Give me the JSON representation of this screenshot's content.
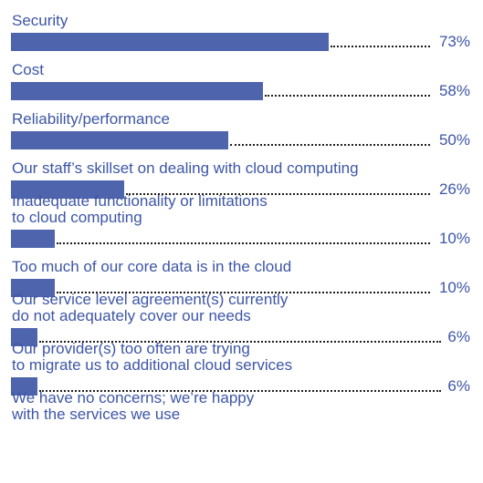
{
  "chart_data": {
    "type": "bar",
    "orientation": "horizontal",
    "categories": [
      [
        "Security"
      ],
      [
        "Cost"
      ],
      [
        "Reliability/performance"
      ],
      [
        "Our staff’s skillset on dealing with cloud computing"
      ],
      [
        "Inadequate functionality or limitations",
        "to cloud computing"
      ],
      [
        "Too much of our core data is in the cloud"
      ],
      [
        "Our service level agreement(s) currently",
        "do not adequately cover our needs"
      ],
      [
        "Our provider(s) too often are trying",
        "to migrate us to additional cloud services"
      ],
      [
        "We have no concerns; we’re happy",
        "with the services we use"
      ]
    ],
    "values": [
      73,
      58,
      50,
      26,
      10,
      10,
      6,
      6,
      null
    ],
    "value_labels": [
      "73%",
      "58%",
      "50%",
      "26%",
      "10%",
      "10%",
      "6%",
      "6%",
      ""
    ],
    "xlim": [
      0,
      100
    ],
    "bar_color": "#4e64ad",
    "text_color": "#3d56a6",
    "leader_color": "#1e1e1e"
  }
}
